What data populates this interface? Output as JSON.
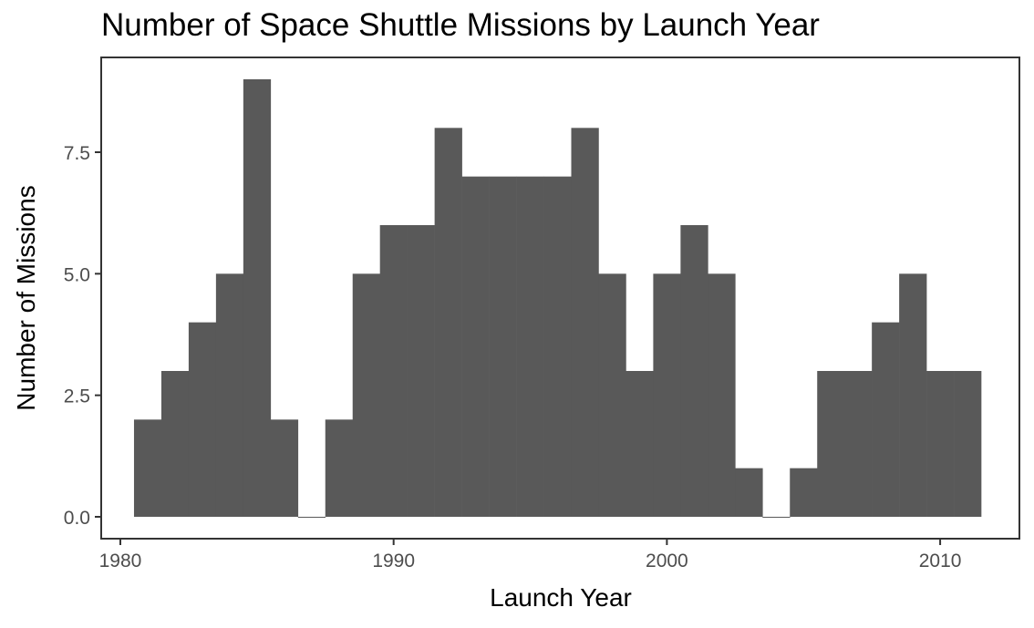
{
  "chart_data": {
    "type": "bar",
    "title": "Number of Space Shuttle Missions by Launch Year",
    "xlabel": "Launch Year",
    "ylabel": "Number of Missions",
    "x": [
      1981,
      1982,
      1983,
      1984,
      1985,
      1986,
      1987,
      1988,
      1989,
      1990,
      1991,
      1992,
      1993,
      1994,
      1995,
      1996,
      1997,
      1998,
      1999,
      2000,
      2001,
      2002,
      2003,
      2004,
      2005,
      2006,
      2007,
      2008,
      2009,
      2010,
      2011
    ],
    "values": [
      2,
      3,
      4,
      5,
      9,
      2,
      0,
      2,
      5,
      6,
      6,
      8,
      7,
      7,
      7,
      7,
      8,
      5,
      3,
      5,
      6,
      5,
      1,
      0,
      1,
      3,
      3,
      4,
      5,
      3,
      3
    ],
    "xlim": [
      1979.3,
      2012.9
    ],
    "ylim": [
      -0.45,
      9.45
    ],
    "xticks": [
      "1980",
      "1990",
      "2000",
      "2010"
    ],
    "yticks": [
      "0.0",
      "2.5",
      "5.0",
      "7.5"
    ],
    "grid": false,
    "bar_color": "#595959",
    "panel_border_color": "#333333",
    "tick_color": "#333333"
  }
}
